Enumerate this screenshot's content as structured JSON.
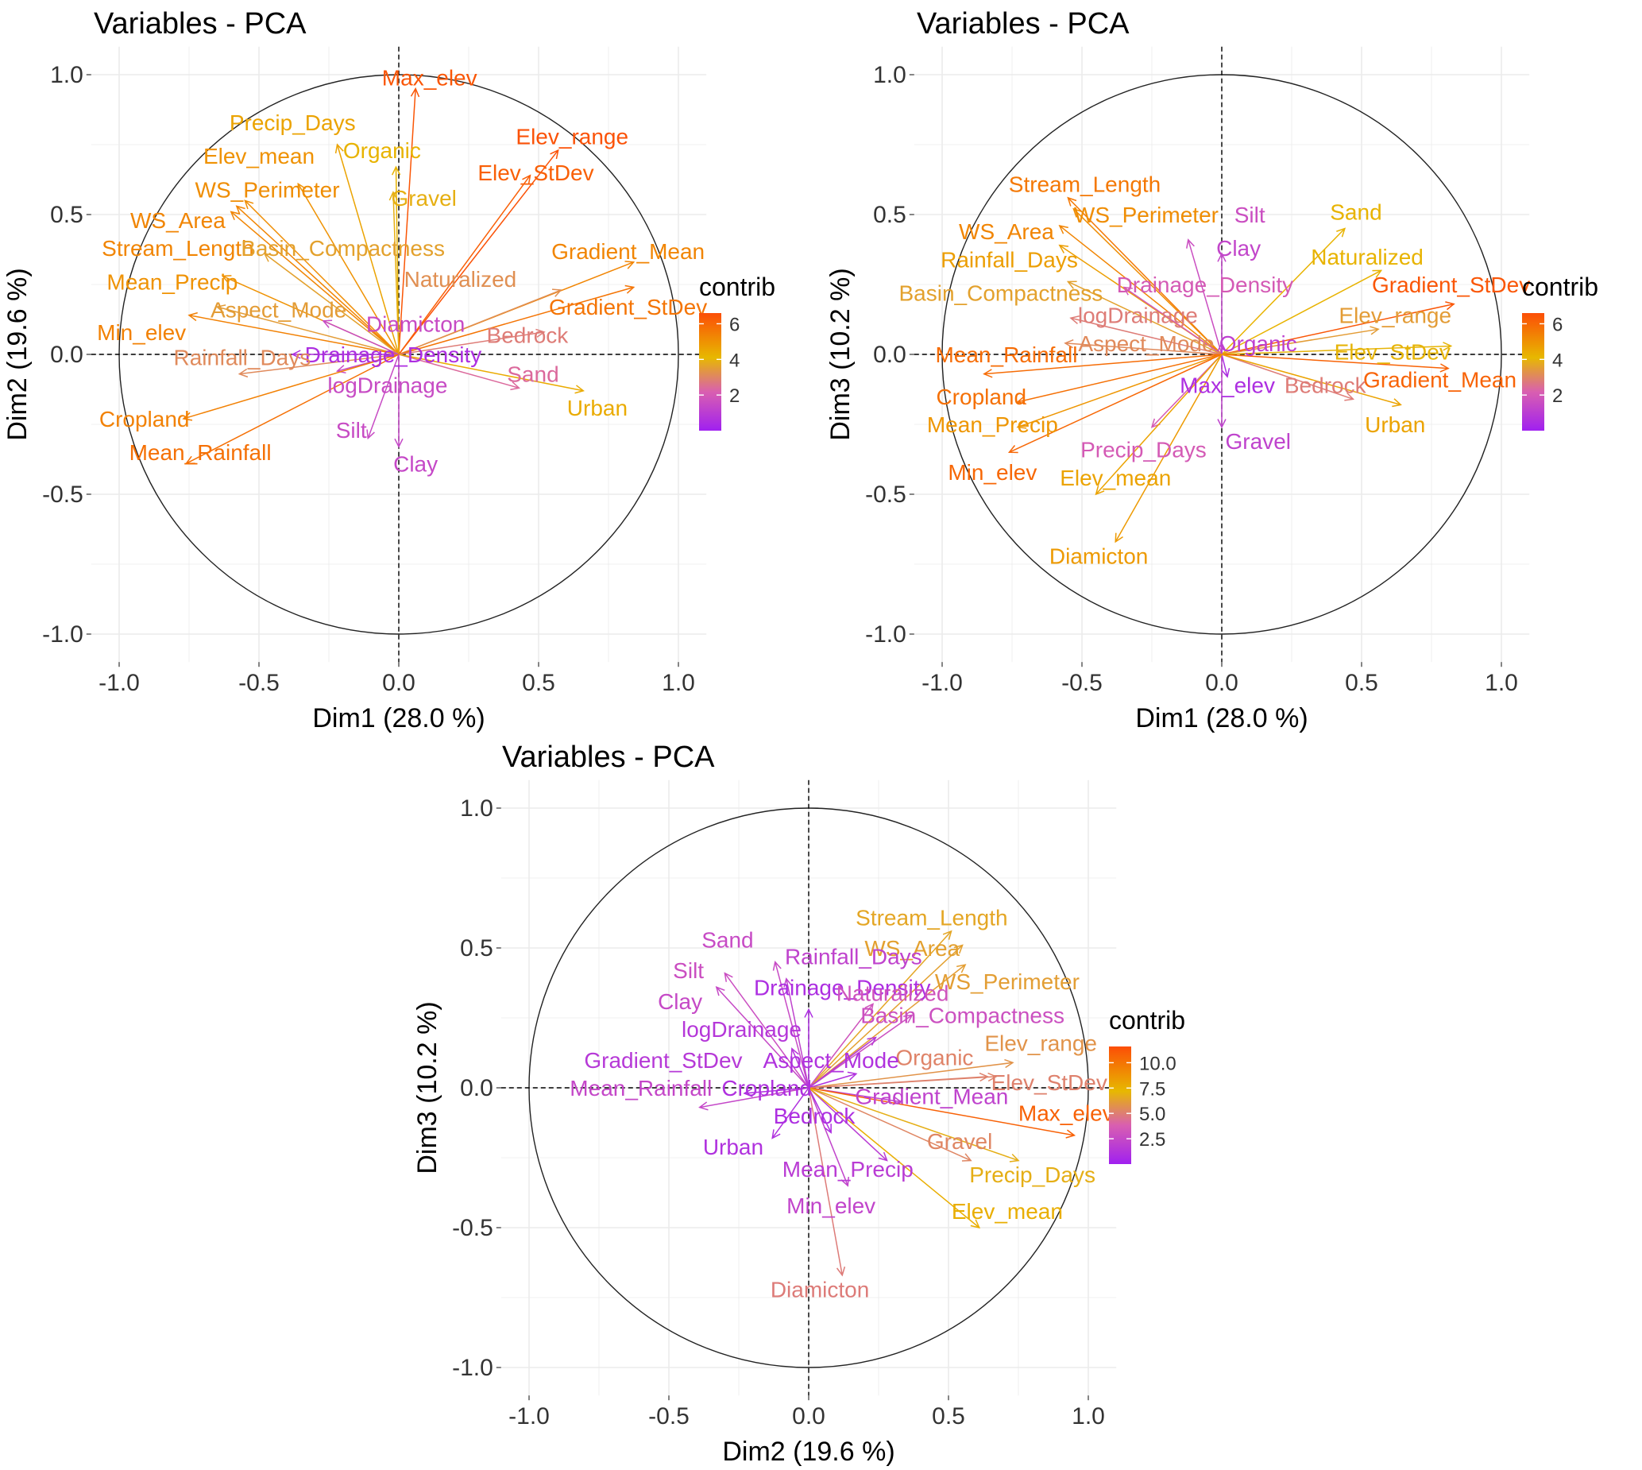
{
  "chart_data": [
    {
      "type": "scatter",
      "subtype": "pca-correlation-circle",
      "title": "Variables - PCA",
      "xlabel": "Dim1 (28.0 %)",
      "ylabel": "Dim2 (19.6 %)",
      "xlim": [
        -1.1,
        1.1
      ],
      "ylim": [
        -1.1,
        1.1
      ],
      "xticks": [
        "-1.0",
        "-0.5",
        "0.0",
        "0.5",
        "1.0"
      ],
      "yticks": [
        "-1.0",
        "-0.5",
        "0.0",
        "0.5",
        "1.0"
      ],
      "legend": {
        "title": "contrib",
        "range": [
          0,
          6.6
        ],
        "ticks": [
          "2",
          "4",
          "6"
        ],
        "tick_values": [
          2,
          4,
          6
        ]
      },
      "vectors": [
        {
          "name": "Max_elev",
          "x": 0.06,
          "y": 0.95,
          "contrib": 6.4,
          "lx": 0.11,
          "ly": 0.99
        },
        {
          "name": "Precip_Days",
          "x": -0.22,
          "y": 0.75,
          "contrib": 4.6,
          "lx": -0.38,
          "ly": 0.83
        },
        {
          "name": "Organic",
          "x": -0.01,
          "y": 0.67,
          "contrib": 4.2,
          "lx": -0.06,
          "ly": 0.73
        },
        {
          "name": "Elev_mean",
          "x": -0.36,
          "y": 0.61,
          "contrib": 5.0,
          "lx": -0.5,
          "ly": 0.71
        },
        {
          "name": "Gravel",
          "x": -0.02,
          "y": 0.58,
          "contrib": 3.9,
          "lx": 0.09,
          "ly": 0.56
        },
        {
          "name": "WS_Perimeter",
          "x": -0.55,
          "y": 0.55,
          "contrib": 5.1,
          "lx": -0.47,
          "ly": 0.59
        },
        {
          "name": "WS_Area",
          "x": -0.58,
          "y": 0.53,
          "contrib": 5.3,
          "lx": -0.79,
          "ly": 0.48
        },
        {
          "name": "Stream_Length",
          "x": -0.6,
          "y": 0.51,
          "contrib": 5.3,
          "lx": -0.79,
          "ly": 0.38
        },
        {
          "name": "Basin_Compactness",
          "x": -0.48,
          "y": 0.36,
          "contrib": 3.6,
          "lx": -0.2,
          "ly": 0.38
        },
        {
          "name": "Mean_Precip",
          "x": -0.63,
          "y": 0.28,
          "contrib": 5.0,
          "lx": -0.81,
          "ly": 0.26
        },
        {
          "name": "Aspect_Mode",
          "x": -0.65,
          "y": 0.17,
          "contrib": 3.5,
          "lx": -0.43,
          "ly": 0.16
        },
        {
          "name": "Min_elev",
          "x": -0.75,
          "y": 0.14,
          "contrib": 5.4,
          "lx": -0.92,
          "ly": 0.08
        },
        {
          "name": "Diamicton",
          "x": -0.27,
          "y": 0.12,
          "contrib": 1.5,
          "lx": 0.06,
          "ly": 0.11
        },
        {
          "name": "Elev_range",
          "x": 0.57,
          "y": 0.73,
          "contrib": 6.5,
          "lx": 0.62,
          "ly": 0.78
        },
        {
          "name": "Elev_StDev",
          "x": 0.47,
          "y": 0.64,
          "contrib": 6.2,
          "lx": 0.49,
          "ly": 0.65
        },
        {
          "name": "Gradient_Mean",
          "x": 0.84,
          "y": 0.33,
          "contrib": 5.3,
          "lx": 0.82,
          "ly": 0.37
        },
        {
          "name": "Naturalized",
          "x": 0.58,
          "y": 0.23,
          "contrib": 3.2,
          "lx": 0.22,
          "ly": 0.27
        },
        {
          "name": "Gradient_StDev",
          "x": 0.84,
          "y": 0.24,
          "contrib": 5.7,
          "lx": 0.82,
          "ly": 0.17
        },
        {
          "name": "Bedrock",
          "x": 0.52,
          "y": 0.08,
          "contrib": 2.8,
          "lx": 0.46,
          "ly": 0.07
        },
        {
          "name": "Drainage_Density",
          "x": -0.38,
          "y": 0.0,
          "contrib": 0.5,
          "lx": -0.02,
          "ly": 0.0
        },
        {
          "name": "Rainfall_Days",
          "x": -0.57,
          "y": -0.07,
          "contrib": 3.1,
          "lx": -0.56,
          "ly": -0.01
        },
        {
          "name": "Sand",
          "x": 0.43,
          "y": -0.12,
          "contrib": 2.4,
          "lx": 0.48,
          "ly": -0.07
        },
        {
          "name": "Urban",
          "x": 0.66,
          "y": -0.13,
          "contrib": 4.4,
          "lx": 0.71,
          "ly": -0.19
        },
        {
          "name": "logDrainage",
          "x": -0.22,
          "y": -0.06,
          "contrib": 1.5,
          "lx": -0.04,
          "ly": -0.11
        },
        {
          "name": "Cropland",
          "x": -0.77,
          "y": -0.23,
          "contrib": 5.4,
          "lx": -0.91,
          "ly": -0.23
        },
        {
          "name": "Silt",
          "x": -0.11,
          "y": -0.3,
          "contrib": 1.5,
          "lx": -0.17,
          "ly": -0.27
        },
        {
          "name": "Mean_Rainfall",
          "x": -0.76,
          "y": -0.39,
          "contrib": 5.8,
          "lx": -0.71,
          "ly": -0.35
        },
        {
          "name": "Clay",
          "x": 0.0,
          "y": -0.33,
          "contrib": 1.4,
          "lx": 0.06,
          "ly": -0.39
        }
      ]
    },
    {
      "type": "scatter",
      "subtype": "pca-correlation-circle",
      "title": "Variables - PCA",
      "xlabel": "Dim1 (28.0 %)",
      "ylabel": "Dim3 (10.2 %)",
      "xlim": [
        -1.1,
        1.1
      ],
      "ylim": [
        -1.1,
        1.1
      ],
      "xticks": [
        "-1.0",
        "-0.5",
        "0.0",
        "0.5",
        "1.0"
      ],
      "yticks": [
        "-1.0",
        "-0.5",
        "0.0",
        "0.5",
        "1.0"
      ],
      "legend": {
        "title": "contrib",
        "range": [
          0,
          6.6
        ],
        "ticks": [
          "2",
          "4",
          "6"
        ],
        "tick_values": [
          2,
          4,
          6
        ]
      },
      "vectors": [
        {
          "name": "Stream_Length",
          "x": -0.55,
          "y": 0.56,
          "contrib": 5.6,
          "lx": -0.49,
          "ly": 0.61
        },
        {
          "name": "WS_Perimeter",
          "x": -0.53,
          "y": 0.52,
          "contrib": 5.1,
          "lx": -0.27,
          "ly": 0.5
        },
        {
          "name": "Silt",
          "x": -0.12,
          "y": 0.41,
          "contrib": 1.6,
          "lx": 0.1,
          "ly": 0.5
        },
        {
          "name": "Sand",
          "x": 0.44,
          "y": 0.45,
          "contrib": 4.2,
          "lx": 0.48,
          "ly": 0.51
        },
        {
          "name": "WS_Area",
          "x": -0.58,
          "y": 0.46,
          "contrib": 5.3,
          "lx": -0.77,
          "ly": 0.44
        },
        {
          "name": "Clay",
          "x": 0.0,
          "y": 0.36,
          "contrib": 1.3,
          "lx": 0.06,
          "ly": 0.38
        },
        {
          "name": "Rainfall_Days",
          "x": -0.58,
          "y": 0.39,
          "contrib": 4.7,
          "lx": -0.76,
          "ly": 0.34
        },
        {
          "name": "Naturalized",
          "x": 0.57,
          "y": 0.3,
          "contrib": 4.2,
          "lx": 0.52,
          "ly": 0.35
        },
        {
          "name": "Drainage_Density",
          "x": -0.35,
          "y": 0.24,
          "contrib": 2.0,
          "lx": -0.06,
          "ly": 0.25
        },
        {
          "name": "Gradient_StDev",
          "x": 0.83,
          "y": 0.18,
          "contrib": 6.4,
          "lx": 0.82,
          "ly": 0.25
        },
        {
          "name": "Basin_Compactness",
          "x": -0.55,
          "y": 0.26,
          "contrib": 3.6,
          "lx": -0.79,
          "ly": 0.22
        },
        {
          "name": "Elev_range",
          "x": 0.56,
          "y": 0.09,
          "contrib": 3.5,
          "lx": 0.62,
          "ly": 0.14
        },
        {
          "name": "logDrainage",
          "x": -0.54,
          "y": 0.13,
          "contrib": 2.8,
          "lx": -0.3,
          "ly": 0.14
        },
        {
          "name": "Aspect_Mode",
          "x": -0.56,
          "y": 0.04,
          "contrib": 3.1,
          "lx": -0.27,
          "ly": 0.04
        },
        {
          "name": "Organic",
          "x": 0.0,
          "y": 0.04,
          "contrib": 1.1,
          "lx": 0.13,
          "ly": 0.04
        },
        {
          "name": "Elev_StDev",
          "x": 0.82,
          "y": 0.03,
          "contrib": 4.0,
          "lx": 0.61,
          "ly": 0.01
        },
        {
          "name": "Mean_Rainfall",
          "x": -0.85,
          "y": -0.07,
          "contrib": 5.9,
          "lx": -0.77,
          "ly": 0.0
        },
        {
          "name": "Gradient_Mean",
          "x": 0.81,
          "y": -0.05,
          "contrib": 6.1,
          "lx": 0.78,
          "ly": -0.09
        },
        {
          "name": "Bedrock",
          "x": 0.47,
          "y": -0.16,
          "contrib": 2.8,
          "lx": 0.37,
          "ly": -0.11
        },
        {
          "name": "Max_elev",
          "x": 0.02,
          "y": -0.08,
          "contrib": 0.5,
          "lx": 0.02,
          "ly": -0.11
        },
        {
          "name": "Cropland",
          "x": -0.73,
          "y": -0.17,
          "contrib": 5.8,
          "lx": -0.86,
          "ly": -0.15
        },
        {
          "name": "Urban",
          "x": 0.64,
          "y": -0.18,
          "contrib": 4.6,
          "lx": 0.62,
          "ly": -0.25
        },
        {
          "name": "Mean_Precip",
          "x": -0.73,
          "y": -0.26,
          "contrib": 4.9,
          "lx": -0.82,
          "ly": -0.25
        },
        {
          "name": "Gravel",
          "x": 0.0,
          "y": -0.26,
          "contrib": 1.2,
          "lx": 0.13,
          "ly": -0.31
        },
        {
          "name": "Precip_Days",
          "x": -0.25,
          "y": -0.26,
          "contrib": 2.0,
          "lx": -0.28,
          "ly": -0.34
        },
        {
          "name": "Min_elev",
          "x": -0.76,
          "y": -0.35,
          "contrib": 6.0,
          "lx": -0.82,
          "ly": -0.42
        },
        {
          "name": "Elev_mean",
          "x": -0.45,
          "y": -0.5,
          "contrib": 4.6,
          "lx": -0.38,
          "ly": -0.44
        },
        {
          "name": "Diamicton",
          "x": -0.38,
          "y": -0.67,
          "contrib": 4.8,
          "lx": -0.44,
          "ly": -0.72
        }
      ]
    },
    {
      "type": "scatter",
      "subtype": "pca-correlation-circle",
      "title": "Variables - PCA",
      "xlabel": "Dim2 (19.6 %)",
      "ylabel": "Dim3 (10.2 %)",
      "xlim": [
        -1.1,
        1.1
      ],
      "ylim": [
        -1.1,
        1.1
      ],
      "xticks": [
        "-1.0",
        "-0.5",
        "0.0",
        "0.5",
        "1.0"
      ],
      "yticks": [
        "-1.0",
        "-0.5",
        "0.0",
        "0.5",
        "1.0"
      ],
      "legend": {
        "title": "contrib",
        "range": [
          0,
          11.6
        ],
        "ticks": [
          "10.0",
          "7.5",
          "5.0",
          "2.5"
        ],
        "tick_values": [
          10,
          7.5,
          5,
          2.5
        ]
      },
      "vectors": [
        {
          "name": "Stream_Length",
          "x": 0.51,
          "y": 0.56,
          "contrib": 6.5,
          "lx": 0.44,
          "ly": 0.61
        },
        {
          "name": "WS_Area",
          "x": 0.55,
          "y": 0.51,
          "contrib": 6.3,
          "lx": 0.37,
          "ly": 0.5
        },
        {
          "name": "Sand",
          "x": -0.12,
          "y": 0.45,
          "contrib": 2.6,
          "lx": -0.29,
          "ly": 0.53
        },
        {
          "name": "Rainfall_Days",
          "x": -0.08,
          "y": 0.39,
          "contrib": 2.1,
          "lx": 0.16,
          "ly": 0.47
        },
        {
          "name": "WS_Perimeter",
          "x": 0.56,
          "y": 0.44,
          "contrib": 6.2,
          "lx": 0.71,
          "ly": 0.38
        },
        {
          "name": "Silt",
          "x": -0.3,
          "y": 0.41,
          "contrib": 2.8,
          "lx": -0.43,
          "ly": 0.42
        },
        {
          "name": "Drainage_Density",
          "x": 0.0,
          "y": 0.28,
          "contrib": 0.9,
          "lx": 0.12,
          "ly": 0.36
        },
        {
          "name": "Naturalized",
          "x": 0.23,
          "y": 0.3,
          "contrib": 3.1,
          "lx": 0.3,
          "ly": 0.34
        },
        {
          "name": "Clay",
          "x": -0.33,
          "y": 0.36,
          "contrib": 2.5,
          "lx": -0.46,
          "ly": 0.31
        },
        {
          "name": "Basin_Compactness",
          "x": 0.37,
          "y": 0.26,
          "contrib": 2.9,
          "lx": 0.55,
          "ly": 0.26
        },
        {
          "name": "logDrainage",
          "x": -0.06,
          "y": 0.14,
          "contrib": 1.4,
          "lx": -0.24,
          "ly": 0.21
        },
        {
          "name": "Elev_range",
          "x": 0.73,
          "y": 0.09,
          "contrib": 5.8,
          "lx": 0.83,
          "ly": 0.16
        },
        {
          "name": "Organic",
          "x": 0.67,
          "y": 0.04,
          "contrib": 5.2,
          "lx": 0.45,
          "ly": 0.11
        },
        {
          "name": "Gradient_StDev",
          "x": 0.24,
          "y": 0.18,
          "contrib": 1.5,
          "lx": -0.52,
          "ly": 0.1
        },
        {
          "name": "Aspect_Mode",
          "x": 0.17,
          "y": 0.05,
          "contrib": 1.1,
          "lx": 0.08,
          "ly": 0.1
        },
        {
          "name": "Elev_StDev",
          "x": 0.64,
          "y": 0.04,
          "contrib": 5.1,
          "lx": 0.86,
          "ly": 0.02
        },
        {
          "name": "Mean_Rainfall",
          "x": -0.39,
          "y": -0.07,
          "contrib": 2.4,
          "lx": -0.6,
          "ly": 0.0
        },
        {
          "name": "Cropland",
          "x": -0.23,
          "y": -0.02,
          "contrib": 1.0,
          "lx": -0.15,
          "ly": 0.0
        },
        {
          "name": "Gradient_Mean",
          "x": 0.33,
          "y": -0.05,
          "contrib": 2.1,
          "lx": 0.44,
          "ly": -0.03
        },
        {
          "name": "Max_elev",
          "x": 0.95,
          "y": -0.17,
          "contrib": 10.8,
          "lx": 0.92,
          "ly": -0.09
        },
        {
          "name": "Bedrock",
          "x": 0.08,
          "y": -0.16,
          "contrib": 0.9,
          "lx": 0.02,
          "ly": -0.1
        },
        {
          "name": "Gravel",
          "x": 0.58,
          "y": -0.26,
          "contrib": 5.3,
          "lx": 0.54,
          "ly": -0.19
        },
        {
          "name": "Urban",
          "x": -0.13,
          "y": -0.18,
          "contrib": 1.1,
          "lx": -0.27,
          "ly": -0.21
        },
        {
          "name": "Precip_Days",
          "x": 0.75,
          "y": -0.26,
          "contrib": 6.8,
          "lx": 0.8,
          "ly": -0.31
        },
        {
          "name": "Mean_Precip",
          "x": 0.28,
          "y": -0.26,
          "contrib": 1.7,
          "lx": 0.14,
          "ly": -0.29
        },
        {
          "name": "Min_elev",
          "x": 0.14,
          "y": -0.35,
          "contrib": 2.2,
          "lx": 0.08,
          "ly": -0.42
        },
        {
          "name": "Elev_mean",
          "x": 0.61,
          "y": -0.5,
          "contrib": 7.6,
          "lx": 0.71,
          "ly": -0.44
        },
        {
          "name": "Diamicton",
          "x": 0.12,
          "y": -0.67,
          "contrib": 4.9,
          "lx": 0.04,
          "ly": -0.72
        }
      ]
    }
  ],
  "colors": {
    "grad_low": "#A020F0",
    "grad_midlow": "#D95FB0",
    "grad_mid": "#E7B800",
    "grad_high": "#FC4E07",
    "grid": "#EBEBEB",
    "axis_text": "#333333"
  }
}
